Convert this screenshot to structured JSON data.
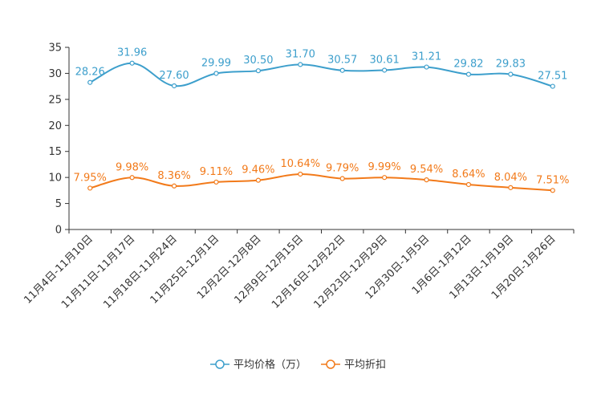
{
  "chart_data": {
    "type": "line",
    "categories": [
      "11月4日-11月10日",
      "11月11日-11月17日",
      "11月18日-11月24日",
      "11月25日-12月1日",
      "12月2日-12月8日",
      "12月9日-12月15日",
      "12月16日-12月22日",
      "12月23日-12月29日",
      "12月30日-1月5日",
      "1月6日-1月12日",
      "1月13日-1月19日",
      "1月20日-1月26日"
    ],
    "series": [
      {
        "name": "平均价格（万）",
        "color": "#3d9fcc",
        "values": [
          28.26,
          31.96,
          27.6,
          29.99,
          30.5,
          31.7,
          30.57,
          30.61,
          31.21,
          29.82,
          29.83,
          27.51
        ],
        "labels": [
          "28.26",
          "31.96",
          "27.60",
          "29.99",
          "30.50",
          "31.70",
          "30.57",
          "30.61",
          "31.21",
          "29.82",
          "29.83",
          "27.51"
        ]
      },
      {
        "name": "平均折扣",
        "color": "#f27a1a",
        "values": [
          7.95,
          9.98,
          8.36,
          9.11,
          9.46,
          10.64,
          9.79,
          9.99,
          9.54,
          8.64,
          8.04,
          7.51
        ],
        "labels": [
          "7.95%",
          "9.98%",
          "8.36%",
          "9.11%",
          "9.46%",
          "10.64%",
          "9.79%",
          "9.99%",
          "9.54%",
          "8.64%",
          "8.04%",
          "7.51%"
        ]
      }
    ],
    "y_ticks": [
      0,
      5,
      10,
      15,
      20,
      25,
      30,
      35
    ],
    "ylim": [
      0,
      35
    ],
    "title": "",
    "xlabel": "",
    "ylabel": "",
    "grid": false,
    "legend_position": "bottom-center"
  }
}
